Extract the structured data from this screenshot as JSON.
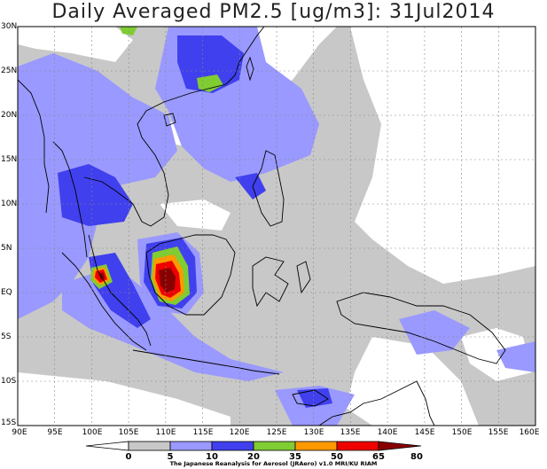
{
  "title": "Daily Averaged PM2.5 [ug/m3]: 31Jul2014",
  "latitude_labels": [
    "30N",
    "25N",
    "20N",
    "15N",
    "10N",
    "5N",
    "EQ",
    "5S",
    "10S",
    "15S"
  ],
  "longitude_labels": [
    "90E",
    "95E",
    "100E",
    "105E",
    "110E",
    "115E",
    "120E",
    "125E",
    "130E",
    "135E",
    "140E",
    "145E",
    "150E",
    "155E",
    "160E"
  ],
  "colorbar": {
    "labels": [
      "0",
      "5",
      "10",
      "20",
      "35",
      "50",
      "65",
      "80"
    ],
    "colors": [
      "#ffffff",
      "#c8c8c8",
      "#9999ff",
      "#4040ee",
      "#80cc33",
      "#ff9900",
      "#ee0000",
      "#880000"
    ]
  },
  "credit": "The Japanese Reanalysis for Aerosol (JRAero) v1.0 MRI/KU RIAM",
  "colors": {
    "frame": "#000000",
    "grid": "#888888",
    "coast": "#000000"
  }
}
